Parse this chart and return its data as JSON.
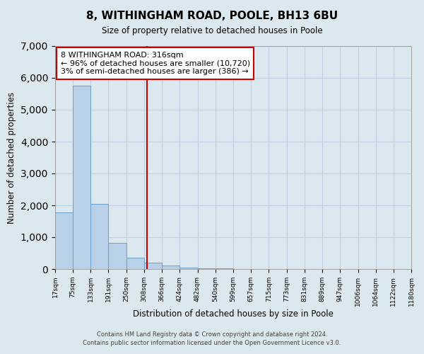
{
  "title": "8, WITHINGHAM ROAD, POOLE, BH13 6BU",
  "subtitle": "Size of property relative to detached houses in Poole",
  "xlabel": "Distribution of detached houses by size in Poole",
  "ylabel": "Number of detached properties",
  "bin_edges": [
    17,
    75,
    133,
    191,
    250,
    308,
    366,
    424,
    482,
    540,
    599,
    657,
    715,
    773,
    831,
    889,
    947,
    1006,
    1064,
    1122,
    1180
  ],
  "bin_labels": [
    "17sqm",
    "75sqm",
    "133sqm",
    "191sqm",
    "250sqm",
    "308sqm",
    "366sqm",
    "424sqm",
    "482sqm",
    "540sqm",
    "599sqm",
    "657sqm",
    "715sqm",
    "773sqm",
    "831sqm",
    "889sqm",
    "947sqm",
    "1006sqm",
    "1064sqm",
    "1122sqm",
    "1180sqm"
  ],
  "bar_color": "#b8d0e8",
  "bar_edge_color": "#6aa0cc",
  "bar_counts": [
    1780,
    5750,
    2050,
    820,
    360,
    200,
    110,
    55,
    30,
    15,
    8,
    4,
    2,
    1,
    1,
    1,
    1,
    1,
    1,
    1
  ],
  "property_value": 316,
  "vline_color": "#cc0000",
  "annotation_title": "8 WITHINGHAM ROAD: 316sqm",
  "annotation_line1": "← 96% of detached houses are smaller (10,720)",
  "annotation_line2": "3% of semi-detached houses are larger (386) →",
  "annotation_box_facecolor": "#ffffff",
  "annotation_box_edgecolor": "#cc0000",
  "ylim": [
    0,
    7000
  ],
  "yticks": [
    0,
    1000,
    2000,
    3000,
    4000,
    5000,
    6000,
    7000
  ],
  "grid_color": "#c0d0e0",
  "bg_color": "#dce8f0",
  "footer1": "Contains HM Land Registry data © Crown copyright and database right 2024.",
  "footer2": "Contains public sector information licensed under the Open Government Licence v3.0."
}
